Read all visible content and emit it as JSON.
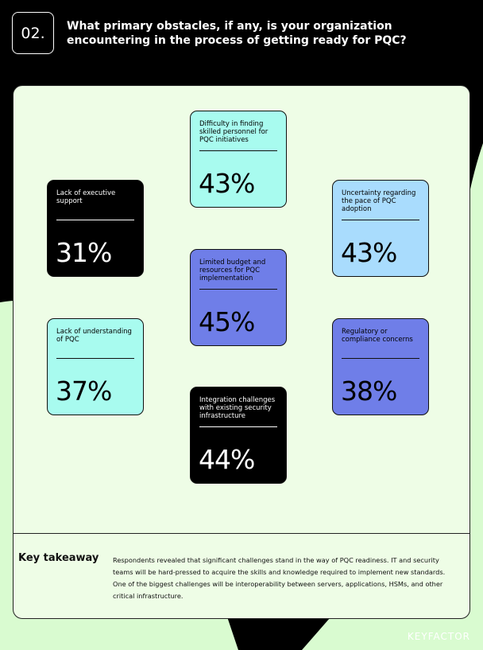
{
  "header": {
    "number": "02.",
    "title": "What primary obstacles, if any, is your organization encountering in the process of getting ready for PQC?"
  },
  "cards": [
    {
      "label": "Difficulty in finding skilled personnel for PQC initiatives",
      "value": "43%"
    },
    {
      "label": "Lack of executive support",
      "value": "31%"
    },
    {
      "label": "Uncertainty regarding the pace of PQC adoption",
      "value": "43%"
    },
    {
      "label": "Limited budget and resources for PQC implementation",
      "value": "45%"
    },
    {
      "label": "Lack of understanding of PQC",
      "value": "37%"
    },
    {
      "label": "Regulatory or compliance concerns",
      "value": "38%"
    },
    {
      "label": "Integration challenges with existing security infrastructure",
      "value": "44%"
    }
  ],
  "takeaway": {
    "heading": "Key takeaway",
    "text": "Respondents revealed that significant challenges stand in the way of PQC readiness. IT and security teams will be hard-pressed to acquire the skills and knowledge required to implement new standards. One of the biggest challenges will be interoperability between servers, applications, HSMs, and other critical infrastructure."
  },
  "footer": {
    "brand": "KEYFACTOR"
  }
}
